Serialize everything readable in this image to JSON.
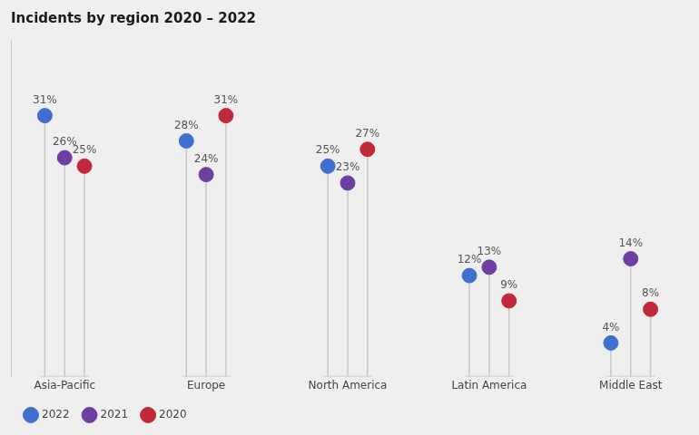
{
  "chart_data": {
    "type": "lollipop",
    "title": "Incidents by region 2020 – 2022",
    "categories": [
      "Asia-Pacific",
      "Europe",
      "North America",
      "Latin America",
      "Middle East"
    ],
    "series": [
      {
        "name": "2022",
        "color": "#3f6fd1",
        "values": [
          31,
          28,
          25,
          12,
          4
        ],
        "value_labels": [
          "31%",
          "28%",
          "25%",
          "12%",
          "4%"
        ]
      },
      {
        "name": "2021",
        "color": "#6e3fa3",
        "values": [
          26,
          24,
          23,
          13,
          14
        ],
        "value_labels": [
          "26%",
          "24%",
          "23%",
          "13%",
          "14%"
        ]
      },
      {
        "name": "2020",
        "color": "#c1283a",
        "values": [
          25,
          31,
          27,
          9,
          8
        ],
        "value_labels": [
          "25%",
          "31%",
          "27%",
          "9%",
          "8%"
        ]
      }
    ],
    "ylim": [
      0,
      40
    ],
    "grid": false,
    "legend": "bottom",
    "data_labels": true,
    "tick_labels": "x"
  }
}
